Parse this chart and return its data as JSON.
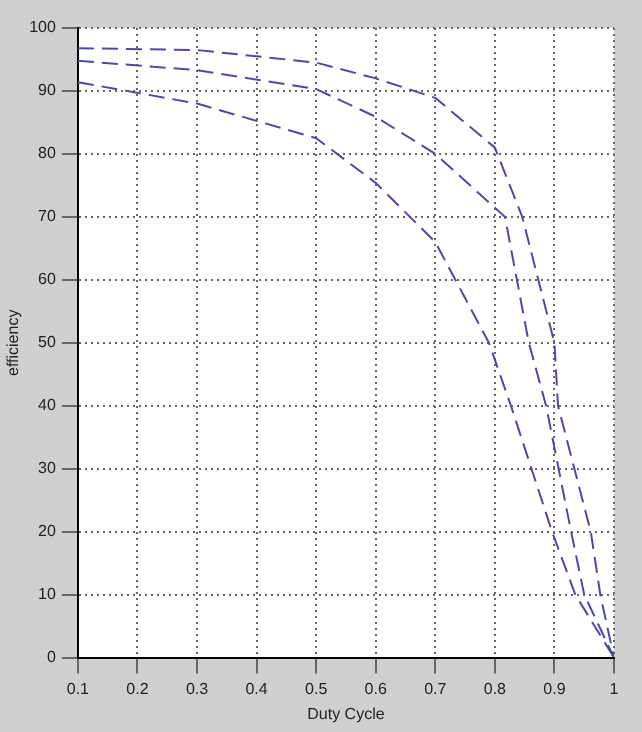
{
  "chart_data": {
    "type": "line",
    "xlabel": "Duty Cycle",
    "ylabel": "efficiency",
    "xlim": [
      0.1,
      1
    ],
    "xticks": [
      0.1,
      0.2,
      0.3,
      0.4,
      0.5,
      0.6,
      0.7,
      0.8,
      0.9,
      1
    ],
    "ylim": [
      0,
      100
    ],
    "yticks": [
      0,
      10,
      20,
      30,
      40,
      50,
      60,
      70,
      80,
      90,
      100
    ],
    "grid": true,
    "marker": "none",
    "line_style": "dashed",
    "series": [
      {
        "color": "#4a4aa8",
        "x": [
          0.1,
          0.3,
          0.5,
          0.6,
          0.7,
          0.8,
          0.846,
          0.9,
          0.906,
          0.961,
          0.977,
          1
        ],
        "values": [
          96.8,
          96.5,
          94.5,
          92,
          88.9,
          81,
          70,
          50,
          40,
          20,
          10,
          0
        ]
      },
      {
        "color": "#4a4aa8",
        "x": [
          0.1,
          0.3,
          0.5,
          0.6,
          0.7,
          0.817,
          0.857,
          0.886,
          0.928,
          0.95,
          1
        ],
        "values": [
          94.8,
          93.3,
          90.3,
          85.9,
          80,
          70,
          50,
          40,
          20,
          10,
          0
        ]
      },
      {
        "color": "#4a4aa8",
        "x": [
          0.1,
          0.3,
          0.5,
          0.6,
          0.7,
          0.79,
          0.827,
          0.896,
          0.935,
          1
        ],
        "values": [
          91.4,
          88,
          82.5,
          75.4,
          66,
          50,
          40,
          20,
          10,
          0
        ]
      }
    ]
  }
}
